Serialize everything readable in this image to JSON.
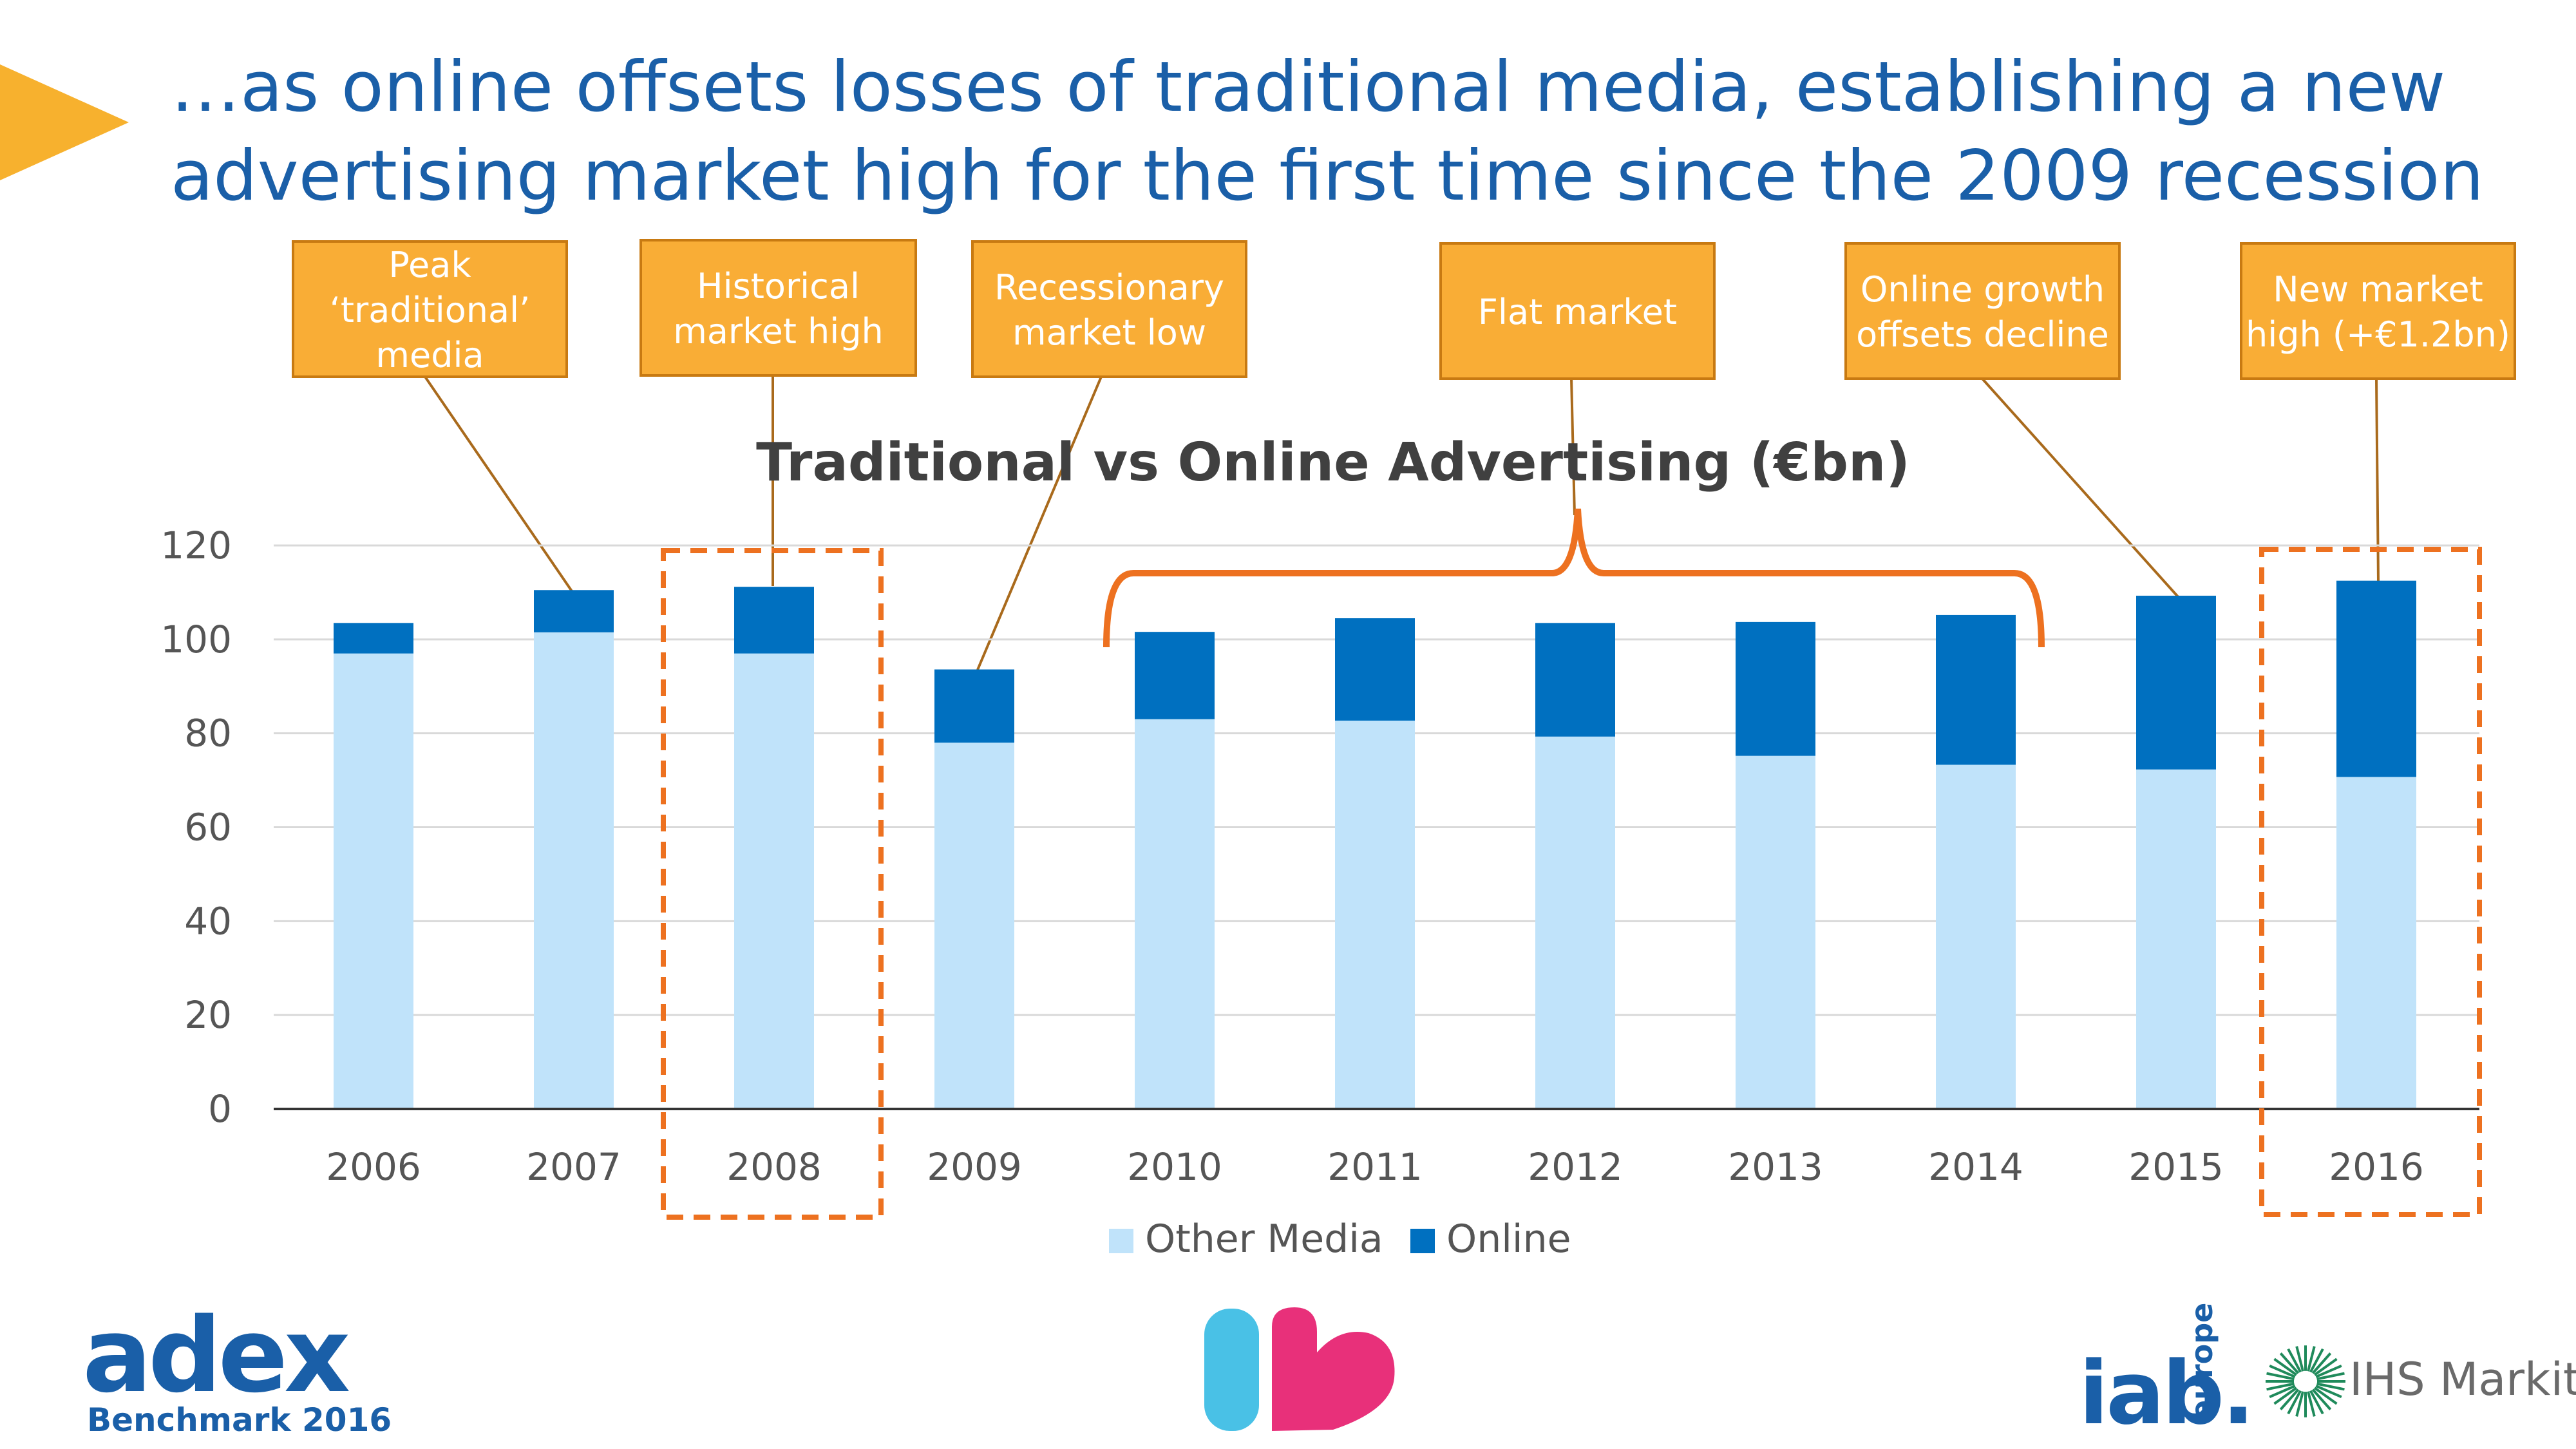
{
  "headline": {
    "line1": "…as online offsets losses of traditional media, establishing a new",
    "line2": "advertising market high for the first time since the 2009 recession"
  },
  "callouts": [
    {
      "lines": [
        "Peak",
        "‘traditional’",
        "media"
      ],
      "year": "2007"
    },
    {
      "lines": [
        "Historical",
        "market high"
      ],
      "year": "2008"
    },
    {
      "lines": [
        "Recessionary",
        "market low"
      ],
      "year": "2009"
    },
    {
      "lines": [
        "Flat market"
      ],
      "year": "2010-2014"
    },
    {
      "lines": [
        "Online growth",
        "offsets decline"
      ],
      "year": "2015"
    },
    {
      "lines": [
        "New market",
        "high (+€1.2bn)"
      ],
      "year": "2016"
    }
  ],
  "chart_data": {
    "type": "bar",
    "stacked": true,
    "title": "Traditional vs Online Advertising (€bn)",
    "xlabel": "",
    "ylabel": "",
    "categories": [
      "2006",
      "2007",
      "2008",
      "2009",
      "2010",
      "2011",
      "2012",
      "2013",
      "2014",
      "2015",
      "2016"
    ],
    "series": [
      {
        "name": "Other Media",
        "color": "#c0e3fa",
        "values": [
          97,
          101.5,
          97,
          78,
          83,
          82.7,
          79.3,
          75.2,
          73.3,
          72.3,
          70.7
        ]
      },
      {
        "name": "Online",
        "color": "#0070c0",
        "values": [
          6.5,
          9,
          14.2,
          15.6,
          18.6,
          21.8,
          24.2,
          28.5,
          31.9,
          37,
          41.8
        ]
      }
    ],
    "ylim": [
      0,
      120
    ],
    "yticks": [
      "0",
      "20",
      "40",
      "60",
      "80",
      "100",
      "120"
    ],
    "grid": true,
    "legend_position": "bottom",
    "highlighted_categories": [
      "2008",
      "2016"
    ]
  },
  "logos": {
    "adex": "adex",
    "adex_sub": "Benchmark 2016",
    "iab": "iab.",
    "iab_region": "europe",
    "ihs": "IHS Markit"
  },
  "colors": {
    "title_blue": "#1a5fa8",
    "callout_fill": "#f9ad36",
    "callout_border": "#c87a12",
    "connector": "#a96a1c",
    "highlight": "#ed7120",
    "arrow": "#f7b12e",
    "axis_text": "#555555",
    "chart_title": "#404040"
  }
}
